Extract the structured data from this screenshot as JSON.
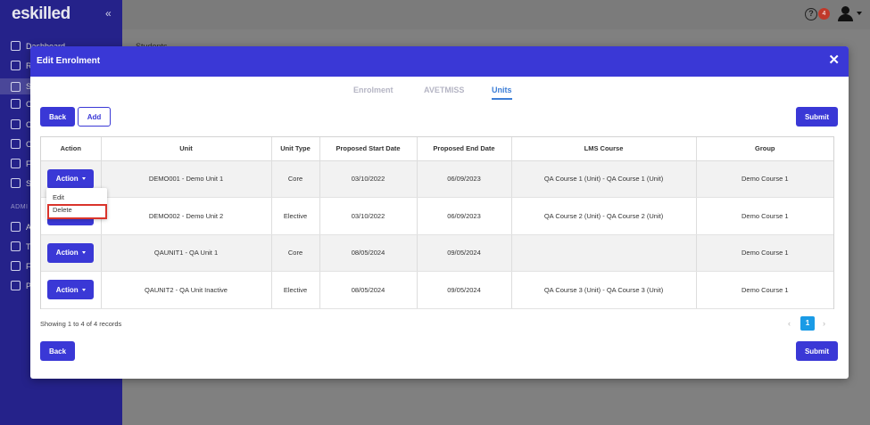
{
  "app": {
    "logo": "eskilled",
    "background_heading": "Students",
    "notification_count": "4",
    "sidebar": {
      "items": [
        "Dashboard",
        "R",
        "S",
        "C",
        "C",
        "C",
        "F",
        "S"
      ],
      "section_label": "ADMI",
      "items2": [
        "A",
        "T",
        "F",
        "P"
      ]
    }
  },
  "modal": {
    "title": "Edit Enrolment",
    "tabs": [
      {
        "label": "Enrolment",
        "active": false
      },
      {
        "label": "AVETMISS",
        "active": false
      },
      {
        "label": "Units",
        "active": true
      }
    ],
    "top_buttons": {
      "back": "Back",
      "add": "Add",
      "submit": "Submit"
    },
    "bottom_buttons": {
      "back": "Back",
      "submit": "Submit"
    },
    "table": {
      "headers": [
        "Action",
        "Unit",
        "Unit Type",
        "Proposed Start Date",
        "Proposed End Date",
        "LMS Course",
        "Group"
      ],
      "action_label": "Action",
      "rows": [
        {
          "unit": "DEMO001 - Demo Unit 1",
          "type": "Core",
          "start": "03/10/2022",
          "end": "06/09/2023",
          "lms": "QA Course 1 (Unit) - QA Course 1 (Unit)",
          "group": "Demo Course 1"
        },
        {
          "unit": "DEMO002 - Demo Unit 2",
          "type": "Elective",
          "start": "03/10/2022",
          "end": "06/09/2023",
          "lms": "QA Course 2 (Unit) - QA Course 2 (Unit)",
          "group": "Demo Course 1"
        },
        {
          "unit": "QAUNIT1 - QA Unit 1",
          "type": "Core",
          "start": "08/05/2024",
          "end": "09/05/2024",
          "lms": "",
          "group": "Demo Course 1"
        },
        {
          "unit": "QAUNIT2 - QA Unit Inactive",
          "type": "Elective",
          "start": "08/05/2024",
          "end": "09/05/2024",
          "lms": "QA Course 3 (Unit) - QA Course 3 (Unit)",
          "group": "Demo Course 1"
        }
      ]
    },
    "dropdown": {
      "edit": "Edit",
      "delete": "Delete"
    },
    "records_text": "Showing 1 to 4 of 4 records",
    "pagination": {
      "prev": "‹",
      "current": "1",
      "next": "›"
    }
  },
  "colors": {
    "primary": "#3a38d6",
    "sidebar": "#25228a",
    "highlight": "#d9342b",
    "pager_active": "#1a9be6"
  }
}
